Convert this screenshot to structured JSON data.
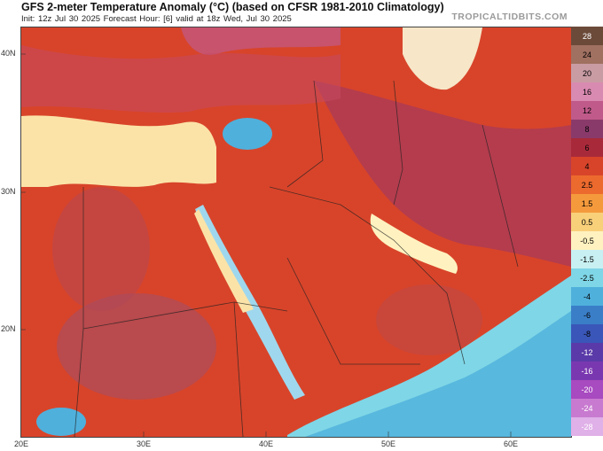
{
  "header": {
    "title": "GFS 2-meter Temperature Anomaly (°C) (based on CFSR 1981-2010 Climatology)",
    "subtitle": "Init: 12z Jul 30 2025   Forecast Hour: [6]   valid at 18z Wed, Jul 30 2025",
    "brand": "TROPICALTIDBITS.COM"
  },
  "map": {
    "lat_labels": [
      {
        "text": "40N",
        "lat": 40
      },
      {
        "text": "30N",
        "lat": 30
      },
      {
        "text": "20N",
        "lat": 20
      }
    ],
    "lon_labels": [
      {
        "text": "20E",
        "lon": 20
      },
      {
        "text": "30E",
        "lon": 30
      },
      {
        "text": "40E",
        "lon": 40
      },
      {
        "text": "50E",
        "lon": 50
      },
      {
        "text": "60E",
        "lon": 60
      }
    ]
  },
  "colorbar": {
    "ticks": [
      "28",
      "24",
      "20",
      "16",
      "12",
      "8",
      "6",
      "4",
      "2.5",
      "1.5",
      "0.5",
      "-0.5",
      "-1.5",
      "-2.5",
      "-4",
      "-6",
      "-8",
      "-12",
      "-16",
      "-20",
      "-24",
      "-28"
    ],
    "colors": [
      "#6b4a3a",
      "#a07060",
      "#c99ca4",
      "#d98ab0",
      "#c05a8a",
      "#8a3a6a",
      "#a82a3a",
      "#d8442a",
      "#ec6a2e",
      "#f59a3c",
      "#f9d07a",
      "#fff2c0",
      "#c8f0f2",
      "#7fd6e6",
      "#4fb0dc",
      "#3a7ec8",
      "#3a56b8",
      "#5a3aa8",
      "#7a38b0",
      "#a84ac0",
      "#c87ad0",
      "#e0b0e8"
    ]
  }
}
